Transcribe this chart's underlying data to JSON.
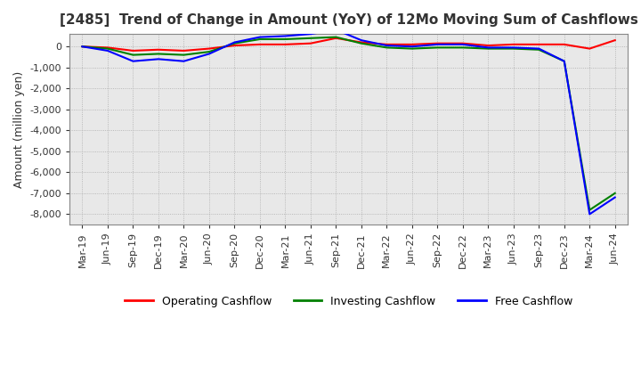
{
  "title": "[2485]  Trend of Change in Amount (YoY) of 12Mo Moving Sum of Cashflows",
  "ylabel": "Amount (million yen)",
  "background_color": "#ffffff",
  "plot_bg_color": "#e8e8e8",
  "grid_color": "#aaaaaa",
  "legend": [
    "Operating Cashflow",
    "Investing Cashflow",
    "Free Cashflow"
  ],
  "legend_colors": [
    "#ff0000",
    "#008000",
    "#0000ff"
  ],
  "x_labels": [
    "Mar-19",
    "Jun-19",
    "Sep-19",
    "Dec-19",
    "Mar-20",
    "Jun-20",
    "Sep-20",
    "Dec-20",
    "Mar-21",
    "Jun-21",
    "Sep-21",
    "Dec-21",
    "Mar-22",
    "Jun-22",
    "Sep-22",
    "Dec-22",
    "Mar-23",
    "Jun-23",
    "Sep-23",
    "Dec-23",
    "Mar-24",
    "Jun-24"
  ],
  "ylim": [
    -8500,
    600
  ],
  "yticks": [
    0,
    -1000,
    -2000,
    -3000,
    -4000,
    -5000,
    -6000,
    -7000,
    -8000
  ],
  "operating": [
    0,
    -50,
    -200,
    -150,
    -200,
    -100,
    50,
    100,
    100,
    150,
    400,
    200,
    100,
    100,
    150,
    150,
    50,
    100,
    100,
    100,
    -100,
    300
  ],
  "investing": [
    0,
    -100,
    -400,
    -350,
    -400,
    -250,
    150,
    350,
    350,
    400,
    450,
    150,
    -50,
    -100,
    -50,
    -50,
    -100,
    -100,
    -150,
    -700,
    -7800,
    -7000
  ],
  "free": [
    0,
    -200,
    -700,
    -600,
    -700,
    -350,
    200,
    450,
    500,
    600,
    800,
    300,
    50,
    0,
    100,
    100,
    -50,
    -50,
    -100,
    -700,
    -8000,
    -7200
  ]
}
